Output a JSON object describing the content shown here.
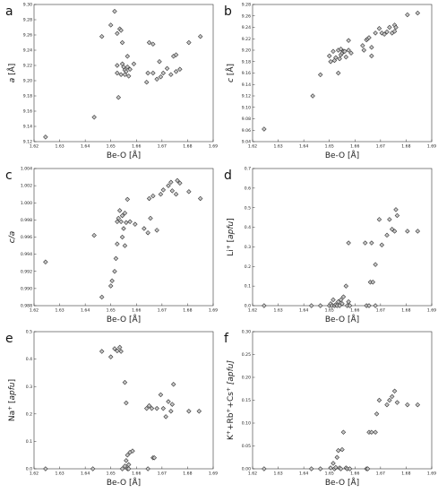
{
  "chart_data": [
    {
      "type": "scatter",
      "panel": "a",
      "ylabel_main": "a",
      "ylabel_unit": " [Å]",
      "ylabel_sup": "",
      "ylabel_italic_main": true,
      "ylabel_unit_italic": false,
      "xlabel": "Be-O [Å]",
      "xlim": [
        1.62,
        1.69
      ],
      "ylim": [
        9.12,
        9.3
      ],
      "xticks": [
        "1.62",
        "1.63",
        "1.64",
        "1.65",
        "1.66",
        "1.67",
        "1.68",
        "1.69"
      ],
      "yticks": [
        "9.12",
        "9.14",
        "9.16",
        "9.18",
        "9.20",
        "9.22",
        "9.24",
        "9.26",
        "9.28",
        "9.30"
      ],
      "points": [
        [
          1.6245,
          9.126
        ],
        [
          1.6435,
          9.152
        ],
        [
          1.6465,
          9.258
        ],
        [
          1.65,
          9.273
        ],
        [
          1.6515,
          9.291
        ],
        [
          1.6525,
          9.262
        ],
        [
          1.6525,
          9.22
        ],
        [
          1.6525,
          9.21
        ],
        [
          1.653,
          9.178
        ],
        [
          1.6535,
          9.268
        ],
        [
          1.654,
          9.266
        ],
        [
          1.6545,
          9.25
        ],
        [
          1.6545,
          9.222
        ],
        [
          1.655,
          9.218
        ],
        [
          1.6555,
          9.214
        ],
        [
          1.654,
          9.208
        ],
        [
          1.6555,
          9.208
        ],
        [
          1.656,
          9.212
        ],
        [
          1.6565,
          9.232
        ],
        [
          1.6565,
          9.218
        ],
        [
          1.657,
          9.206
        ],
        [
          1.6575,
          9.215
        ],
        [
          1.659,
          9.222
        ],
        [
          1.664,
          9.198
        ],
        [
          1.6645,
          9.21
        ],
        [
          1.665,
          9.25
        ],
        [
          1.6665,
          9.248
        ],
        [
          1.6665,
          9.21
        ],
        [
          1.668,
          9.202
        ],
        [
          1.6695,
          9.205
        ],
        [
          1.669,
          9.225
        ],
        [
          1.6705,
          9.21
        ],
        [
          1.672,
          9.216
        ],
        [
          1.6735,
          9.208
        ],
        [
          1.6745,
          9.232
        ],
        [
          1.6755,
          9.234
        ],
        [
          1.6755,
          9.212
        ],
        [
          1.677,
          9.215
        ],
        [
          1.6805,
          9.25
        ],
        [
          1.685,
          9.258
        ]
      ]
    },
    {
      "type": "scatter",
      "panel": "b",
      "ylabel_main": "c",
      "ylabel_unit": " [Å]",
      "ylabel_sup": "",
      "ylabel_italic_main": true,
      "ylabel_unit_italic": false,
      "xlabel": "Be-O [Å]",
      "xlim": [
        1.62,
        1.69
      ],
      "ylim": [
        9.04,
        9.28
      ],
      "xticks": [
        "1.62",
        "1.63",
        "1.64",
        "1.65",
        "1.66",
        "1.67",
        "1.68",
        "1.69"
      ],
      "yticks": [
        "9.04",
        "9.06",
        "9.08",
        "9.10",
        "9.12",
        "9.14",
        "9.16",
        "9.18",
        "9.20",
        "9.22",
        "9.24",
        "9.26",
        "9.28"
      ],
      "points": [
        [
          1.6245,
          9.062
        ],
        [
          1.6435,
          9.12
        ],
        [
          1.6465,
          9.157
        ],
        [
          1.65,
          9.19
        ],
        [
          1.6505,
          9.18
        ],
        [
          1.6515,
          9.198
        ],
        [
          1.652,
          9.182
        ],
        [
          1.6525,
          9.187
        ],
        [
          1.6535,
          9.16
        ],
        [
          1.6535,
          9.2
        ],
        [
          1.654,
          9.185
        ],
        [
          1.6545,
          9.192
        ],
        [
          1.6545,
          9.202
        ],
        [
          1.655,
          9.195
        ],
        [
          1.6555,
          9.198
        ],
        [
          1.656,
          9.198
        ],
        [
          1.6565,
          9.188
        ],
        [
          1.6575,
          9.2
        ],
        [
          1.6575,
          9.217
        ],
        [
          1.6585,
          9.195
        ],
        [
          1.663,
          9.208
        ],
        [
          1.6635,
          9.2
        ],
        [
          1.6645,
          9.218
        ],
        [
          1.665,
          9.22
        ],
        [
          1.6655,
          9.222
        ],
        [
          1.6665,
          9.19
        ],
        [
          1.6665,
          9.205
        ],
        [
          1.668,
          9.23
        ],
        [
          1.6695,
          9.238
        ],
        [
          1.6705,
          9.23
        ],
        [
          1.6715,
          9.228
        ],
        [
          1.6725,
          9.232
        ],
        [
          1.6735,
          9.24
        ],
        [
          1.6745,
          9.23
        ],
        [
          1.6755,
          9.233
        ],
        [
          1.6755,
          9.244
        ],
        [
          1.676,
          9.24
        ],
        [
          1.6805,
          9.262
        ],
        [
          1.6845,
          9.265
        ]
      ]
    },
    {
      "type": "scatter",
      "panel": "c",
      "ylabel_main": "c/a",
      "ylabel_unit": "",
      "ylabel_sup": "",
      "ylabel_italic_main": true,
      "ylabel_unit_italic": false,
      "xlabel": "Be-O [Å]",
      "xlim": [
        1.62,
        1.69
      ],
      "ylim": [
        0.988,
        1.004
      ],
      "xticks": [
        "1.62",
        "1.63",
        "1.64",
        "1.65",
        "1.66",
        "1.67",
        "1.68",
        "1.69"
      ],
      "yticks": [
        "0.988",
        "0.990",
        "0.992",
        "0.994",
        "0.996",
        "0.998",
        "1.000",
        "1.002",
        "1.004"
      ],
      "points": [
        [
          1.6245,
          0.9931
        ],
        [
          1.6435,
          0.9962
        ],
        [
          1.6465,
          0.989
        ],
        [
          1.65,
          0.9903
        ],
        [
          1.6505,
          0.9909
        ],
        [
          1.6515,
          0.992
        ],
        [
          1.652,
          0.9935
        ],
        [
          1.6525,
          0.9952
        ],
        [
          1.6525,
          0.9978
        ],
        [
          1.653,
          0.9982
        ],
        [
          1.6535,
          0.9991
        ],
        [
          1.654,
          0.9978
        ],
        [
          1.6545,
          0.9985
        ],
        [
          1.6545,
          0.996
        ],
        [
          1.655,
          0.997
        ],
        [
          1.6555,
          0.995
        ],
        [
          1.6555,
          0.9988
        ],
        [
          1.656,
          0.9977
        ],
        [
          1.6565,
          1.0004
        ],
        [
          1.6575,
          0.9978
        ],
        [
          1.6595,
          0.9975
        ],
        [
          1.663,
          0.997
        ],
        [
          1.6645,
          0.9965
        ],
        [
          1.665,
          1.0005
        ],
        [
          1.6655,
          0.9982
        ],
        [
          1.6665,
          1.0008
        ],
        [
          1.668,
          0.9968
        ],
        [
          1.6695,
          1.001
        ],
        [
          1.6705,
          1.0015
        ],
        [
          1.6725,
          1.002
        ],
        [
          1.6735,
          1.0024
        ],
        [
          1.674,
          1.0014
        ],
        [
          1.6755,
          1.001
        ],
        [
          1.676,
          1.0026
        ],
        [
          1.677,
          1.0023
        ],
        [
          1.6805,
          1.0013
        ],
        [
          1.685,
          1.0005
        ]
      ]
    },
    {
      "type": "scatter",
      "panel": "d",
      "ylabel_main": "Li",
      "ylabel_sup": "+",
      "ylabel_unit": " [apfu]",
      "ylabel_italic_main": false,
      "ylabel_unit_italic": true,
      "xlabel": "Be-O [Å]",
      "xlim": [
        1.62,
        1.69
      ],
      "ylim": [
        0.0,
        0.7
      ],
      "xticks": [
        "1.62",
        "1.63",
        "1.64",
        "1.65",
        "1.66",
        "1.67",
        "1.68",
        "1.69"
      ],
      "yticks": [
        "0.0",
        "0.1",
        "0.2",
        "0.3",
        "0.4",
        "0.5",
        "0.6",
        "0.7"
      ],
      "points": [
        [
          1.6245,
          0.0
        ],
        [
          1.643,
          0.0
        ],
        [
          1.6465,
          0.0
        ],
        [
          1.65,
          0.0
        ],
        [
          1.6505,
          0.01
        ],
        [
          1.651,
          0.0
        ],
        [
          1.6515,
          0.03
        ],
        [
          1.652,
          0.0
        ],
        [
          1.6525,
          0.005
        ],
        [
          1.653,
          0.0
        ],
        [
          1.6535,
          0.02
        ],
        [
          1.654,
          0.0
        ],
        [
          1.6545,
          0.03
        ],
        [
          1.655,
          0.01
        ],
        [
          1.6555,
          0.045
        ],
        [
          1.6565,
          0.1
        ],
        [
          1.657,
          0.0
        ],
        [
          1.6575,
          0.02
        ],
        [
          1.6575,
          0.32
        ],
        [
          1.658,
          0.0
        ],
        [
          1.6645,
          0.0
        ],
        [
          1.6655,
          0.0
        ],
        [
          1.666,
          0.12
        ],
        [
          1.664,
          0.32
        ],
        [
          1.6665,
          0.32
        ],
        [
          1.667,
          0.12
        ],
        [
          1.668,
          0.0
        ],
        [
          1.668,
          0.21
        ],
        [
          1.6695,
          0.44
        ],
        [
          1.6705,
          0.31
        ],
        [
          1.6725,
          0.36
        ],
        [
          1.6735,
          0.44
        ],
        [
          1.6745,
          0.39
        ],
        [
          1.6755,
          0.38
        ],
        [
          1.676,
          0.49
        ],
        [
          1.6765,
          0.46
        ],
        [
          1.6805,
          0.38
        ],
        [
          1.6845,
          0.38
        ]
      ]
    },
    {
      "type": "scatter",
      "panel": "e",
      "ylabel_main": "Na",
      "ylabel_sup": "+",
      "ylabel_unit": " [apfu]",
      "ylabel_italic_main": false,
      "ylabel_unit_italic": true,
      "xlabel": "Be-O [Å]",
      "xlim": [
        1.62,
        1.69
      ],
      "ylim": [
        0.0,
        0.5
      ],
      "xticks": [
        "1.62",
        "1.63",
        "1.64",
        "1.65",
        "1.66",
        "1.67",
        "1.68",
        "1.69"
      ],
      "yticks": [
        "0.0",
        "0.1",
        "0.2",
        "0.3",
        "0.4",
        "0.5"
      ],
      "points": [
        [
          1.6245,
          0.0
        ],
        [
          1.643,
          0.0
        ],
        [
          1.6465,
          0.428
        ],
        [
          1.65,
          0.408
        ],
        [
          1.6515,
          0.438
        ],
        [
          1.6525,
          0.43
        ],
        [
          1.6535,
          0.443
        ],
        [
          1.654,
          0.428
        ],
        [
          1.6545,
          0.0
        ],
        [
          1.6555,
          0.315
        ],
        [
          1.6555,
          0.01
        ],
        [
          1.656,
          0.24
        ],
        [
          1.656,
          0.03
        ],
        [
          1.6565,
          0.05
        ],
        [
          1.6565,
          0.0
        ],
        [
          1.657,
          0.015
        ],
        [
          1.6575,
          0.06
        ],
        [
          1.6585,
          0.065
        ],
        [
          1.657,
          0.0
        ],
        [
          1.6645,
          0.0
        ],
        [
          1.664,
          0.22
        ],
        [
          1.665,
          0.23
        ],
        [
          1.666,
          0.22
        ],
        [
          1.6665,
          0.04
        ],
        [
          1.667,
          0.04
        ],
        [
          1.668,
          0.22
        ],
        [
          1.6695,
          0.27
        ],
        [
          1.6705,
          0.22
        ],
        [
          1.6715,
          0.19
        ],
        [
          1.6725,
          0.245
        ],
        [
          1.6735,
          0.21
        ],
        [
          1.674,
          0.235
        ],
        [
          1.6745,
          0.308
        ],
        [
          1.6805,
          0.21
        ],
        [
          1.6845,
          0.21
        ]
      ]
    },
    {
      "type": "scatter",
      "panel": "f",
      "ylabel_main": "K",
      "ylabel_sup": "+",
      "ylabel_unit": " [apfu]",
      "ylabel_italic_main": false,
      "ylabel_unit_italic": true,
      "ylabel_full": "K+Rb+Cs+",
      "xlabel": "Be-O [Å]",
      "xlim": [
        1.62,
        1.69
      ],
      "ylim": [
        0.0,
        0.3
      ],
      "xticks": [
        "1.62",
        "1.63",
        "1.64",
        "1.65",
        "1.66",
        "1.67",
        "1.68",
        "1.69"
      ],
      "yticks": [
        "0.00",
        "0.05",
        "0.10",
        "0.15",
        "0.20",
        "0.25",
        "0.30"
      ],
      "points": [
        [
          1.6245,
          0.0
        ],
        [
          1.643,
          0.0
        ],
        [
          1.6465,
          0.0
        ],
        [
          1.6505,
          0.002
        ],
        [
          1.6515,
          0.012
        ],
        [
          1.652,
          0.0
        ],
        [
          1.6525,
          0.003
        ],
        [
          1.653,
          0.025
        ],
        [
          1.6535,
          0.04
        ],
        [
          1.654,
          0.002
        ],
        [
          1.6545,
          0.0
        ],
        [
          1.655,
          0.042
        ],
        [
          1.6555,
          0.08
        ],
        [
          1.6565,
          0.002
        ],
        [
          1.657,
          0.0
        ],
        [
          1.658,
          0.0
        ],
        [
          1.6645,
          0.0
        ],
        [
          1.665,
          0.0
        ],
        [
          1.6655,
          0.08
        ],
        [
          1.6665,
          0.08
        ],
        [
          1.668,
          0.08
        ],
        [
          1.6685,
          0.12
        ],
        [
          1.6695,
          0.15
        ],
        [
          1.6725,
          0.14
        ],
        [
          1.6735,
          0.15
        ],
        [
          1.6745,
          0.158
        ],
        [
          1.6755,
          0.17
        ],
        [
          1.6765,
          0.145
        ],
        [
          1.6805,
          0.14
        ],
        [
          1.6845,
          0.14
        ]
      ]
    }
  ],
  "f_label_parts": {
    "k": "K",
    "rb": "Rb",
    "cs": "Cs",
    "plus": "+",
    "sup": "+",
    "unit": " [apfu]"
  }
}
